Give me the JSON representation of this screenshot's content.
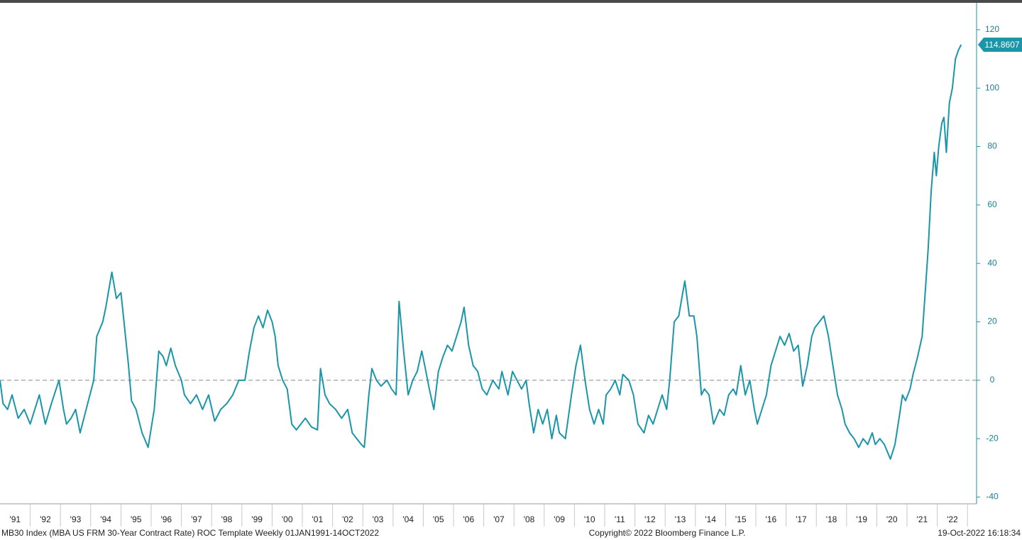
{
  "chart_data": {
    "type": "line",
    "footer_left": "MB30 Index (MBA US FRM 30-Year Contract Rate) ROC Template  Weekly 01JAN1991-14OCT2022",
    "footer_center": "Copyright© 2022 Bloomberg Finance L.P.",
    "footer_right": "19-Oct-2022 16:18:34",
    "last_value": 114.8607,
    "hline": 0,
    "color": "#1a96a8",
    "xlim": [
      1991,
      2023.3
    ],
    "ylim": [
      -42.3,
      129.2
    ],
    "yticks": [
      -40,
      -20,
      0,
      20,
      40,
      60,
      80,
      100,
      120
    ],
    "xticks": [
      {
        "value": 1991,
        "label": "'91"
      },
      {
        "value": 1992,
        "label": "'92"
      },
      {
        "value": 1993,
        "label": "'93"
      },
      {
        "value": 1994,
        "label": "'94"
      },
      {
        "value": 1995,
        "label": "'95"
      },
      {
        "value": 1996,
        "label": "'96"
      },
      {
        "value": 1997,
        "label": "'97"
      },
      {
        "value": 1998,
        "label": "'98"
      },
      {
        "value": 1999,
        "label": "'99"
      },
      {
        "value": 2000,
        "label": "'00"
      },
      {
        "value": 2001,
        "label": "'01"
      },
      {
        "value": 2002,
        "label": "'02"
      },
      {
        "value": 2003,
        "label": "'03"
      },
      {
        "value": 2004,
        "label": "'04"
      },
      {
        "value": 2005,
        "label": "'05"
      },
      {
        "value": 2006,
        "label": "'06"
      },
      {
        "value": 2007,
        "label": "'07"
      },
      {
        "value": 2008,
        "label": "'08"
      },
      {
        "value": 2009,
        "label": "'09"
      },
      {
        "value": 2010,
        "label": "'10"
      },
      {
        "value": 2011,
        "label": "'11"
      },
      {
        "value": 2012,
        "label": "'12"
      },
      {
        "value": 2013,
        "label": "'13"
      },
      {
        "value": 2014,
        "label": "'14"
      },
      {
        "value": 2015,
        "label": "'15"
      },
      {
        "value": 2016,
        "label": "'16"
      },
      {
        "value": 2017,
        "label": "'17"
      },
      {
        "value": 2018,
        "label": "'18"
      },
      {
        "value": 2019,
        "label": "'19"
      },
      {
        "value": 2020,
        "label": "'20"
      },
      {
        "value": 2021,
        "label": "'21"
      },
      {
        "value": 2022,
        "label": "'22"
      }
    ],
    "x": [
      1991.0,
      1991.1,
      1991.25,
      1991.4,
      1991.6,
      1991.8,
      1992.0,
      1992.3,
      1992.4,
      1992.5,
      1992.7,
      1992.95,
      1993.1,
      1993.2,
      1993.35,
      1993.5,
      1993.65,
      1993.9,
      1994.1,
      1994.2,
      1994.4,
      1994.5,
      1994.7,
      1994.85,
      1995.0,
      1995.1,
      1995.25,
      1995.35,
      1995.5,
      1995.7,
      1995.9,
      1996.1,
      1996.25,
      1996.4,
      1996.5,
      1996.65,
      1996.8,
      1997.0,
      1997.1,
      1997.3,
      1997.5,
      1997.7,
      1997.9,
      1998.1,
      1998.3,
      1998.5,
      1998.7,
      1998.9,
      1999.1,
      1999.25,
      1999.4,
      1999.55,
      1999.7,
      1999.85,
      2000.0,
      2000.1,
      2000.2,
      2000.35,
      2000.5,
      2000.65,
      2000.8,
      2000.95,
      2001.1,
      2001.3,
      2001.5,
      2001.6,
      2001.75,
      2001.9,
      2002.1,
      2002.3,
      2002.5,
      2002.65,
      2002.8,
      2002.95,
      2003.05,
      2003.2,
      2003.3,
      2003.45,
      2003.6,
      2003.8,
      2003.95,
      2004.1,
      2004.2,
      2004.35,
      2004.5,
      2004.65,
      2004.8,
      2004.95,
      2005.05,
      2005.2,
      2005.35,
      2005.5,
      2005.65,
      2005.8,
      2005.95,
      2006.1,
      2006.25,
      2006.35,
      2006.5,
      2006.65,
      2006.8,
      2006.95,
      2007.1,
      2007.3,
      2007.5,
      2007.6,
      2007.8,
      2007.95,
      2008.1,
      2008.25,
      2008.4,
      2008.5,
      2008.65,
      2008.8,
      2008.95,
      2009.1,
      2009.25,
      2009.4,
      2009.5,
      2009.7,
      2009.9,
      2010.05,
      2010.2,
      2010.35,
      2010.5,
      2010.65,
      2010.8,
      2010.95,
      2011.05,
      2011.2,
      2011.35,
      2011.5,
      2011.6,
      2011.8,
      2011.95,
      2012.1,
      2012.3,
      2012.45,
      2012.6,
      2012.75,
      2012.9,
      2013.05,
      2013.15,
      2013.3,
      2013.45,
      2013.55,
      2013.65,
      2013.8,
      2013.95,
      2014.05,
      2014.2,
      2014.3,
      2014.45,
      2014.6,
      2014.8,
      2014.95,
      2015.1,
      2015.25,
      2015.35,
      2015.5,
      2015.65,
      2015.8,
      2015.95,
      2016.05,
      2016.2,
      2016.35,
      2016.5,
      2016.65,
      2016.8,
      2016.95,
      2017.1,
      2017.25,
      2017.4,
      2017.55,
      2017.7,
      2017.85,
      2017.95,
      2018.1,
      2018.25,
      2018.4,
      2018.55,
      2018.7,
      2018.85,
      2018.95,
      2019.1,
      2019.25,
      2019.4,
      2019.55,
      2019.7,
      2019.85,
      2019.95,
      2020.1,
      2020.25,
      2020.45,
      2020.6,
      2020.75,
      2020.85,
      2020.95,
      2021.1,
      2021.2,
      2021.35,
      2021.5,
      2021.6,
      2021.7,
      2021.8,
      2021.9,
      2021.97,
      2022.05,
      2022.15,
      2022.22,
      2022.3,
      2022.4,
      2022.5,
      2022.6,
      2022.7,
      2022.79
    ],
    "values": [
      0,
      -8,
      -10,
      -5,
      -13,
      -10,
      -15,
      -5,
      -10,
      -15,
      -8,
      0,
      -10,
      -15,
      -13,
      -10,
      -18,
      -8,
      0,
      15,
      20,
      25,
      37,
      28,
      30,
      20,
      5,
      -7,
      -10,
      -18,
      -23,
      -10,
      10,
      8,
      5,
      11,
      5,
      0,
      -5,
      -8,
      -5,
      -10,
      -5,
      -14,
      -10,
      -8,
      -5,
      0,
      0,
      10,
      18,
      22,
      18,
      24,
      20,
      15,
      5,
      0,
      -3,
      -15,
      -17,
      -15,
      -13,
      -16,
      -17,
      4,
      -5,
      -8,
      -10,
      -13,
      -10,
      -18,
      -20,
      -22,
      -23,
      -5,
      4,
      0,
      -2,
      0,
      -3,
      -5,
      27,
      10,
      -5,
      0,
      3,
      10,
      5,
      -3,
      -10,
      3,
      8,
      12,
      10,
      15,
      20,
      25,
      12,
      5,
      3,
      -3,
      -5,
      0,
      -3,
      3,
      -5,
      3,
      0,
      -3,
      0,
      -8,
      -18,
      -10,
      -15,
      -10,
      -20,
      -12,
      -18,
      -20,
      -5,
      5,
      12,
      0,
      -10,
      -15,
      -10,
      -15,
      -5,
      -3,
      0,
      -5,
      2,
      0,
      -5,
      -15,
      -18,
      -12,
      -15,
      -10,
      -5,
      -10,
      0,
      20,
      22,
      28,
      34,
      22,
      22,
      15,
      -5,
      -3,
      -5,
      -15,
      -10,
      -12,
      -5,
      -3,
      -5,
      5,
      -5,
      0,
      -10,
      -15,
      -10,
      -5,
      5,
      10,
      15,
      12,
      16,
      10,
      12,
      -2,
      5,
      15,
      18,
      20,
      22,
      15,
      5,
      -5,
      -10,
      -15,
      -18,
      -20,
      -23,
      -20,
      -22,
      -18,
      -22,
      -20,
      -22,
      -27,
      -22,
      -12,
      -5,
      -7,
      -3,
      2,
      8,
      15,
      30,
      45,
      65,
      78,
      70,
      80,
      88,
      90,
      78,
      95,
      100,
      110,
      113,
      114.8607
    ]
  }
}
